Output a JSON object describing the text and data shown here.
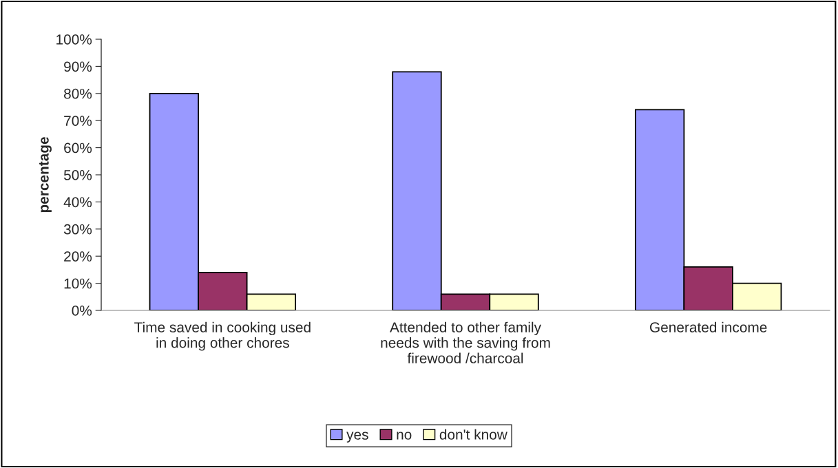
{
  "chart_data": {
    "type": "bar",
    "ylabel": "percentage",
    "categories": [
      "Time saved in cooking used\nin doing other chores",
      "Attended to other family\nneeds with the saving from\nfirewood /charcoal",
      "Generated income"
    ],
    "series": [
      {
        "name": "yes",
        "color": "#9999ff",
        "values": [
          80,
          88,
          74
        ]
      },
      {
        "name": "no",
        "color": "#993366",
        "values": [
          14,
          6,
          16
        ]
      },
      {
        "name": "don't know",
        "color": "#ffffcc",
        "values": [
          6,
          6,
          10
        ]
      }
    ],
    "ylim": [
      0,
      100
    ],
    "yticks": [
      {
        "value": 0,
        "label": "0%"
      },
      {
        "value": 10,
        "label": "10%"
      },
      {
        "value": 20,
        "label": "20%"
      },
      {
        "value": 30,
        "label": "30%"
      },
      {
        "value": 40,
        "label": "40%"
      },
      {
        "value": 50,
        "label": "50%"
      },
      {
        "value": 60,
        "label": "60%"
      },
      {
        "value": 70,
        "label": "70%"
      },
      {
        "value": 80,
        "label": "80%"
      },
      {
        "value": 90,
        "label": "90%"
      },
      {
        "value": 100,
        "label": "100%"
      }
    ],
    "legend": "bottom",
    "grid": false
  }
}
